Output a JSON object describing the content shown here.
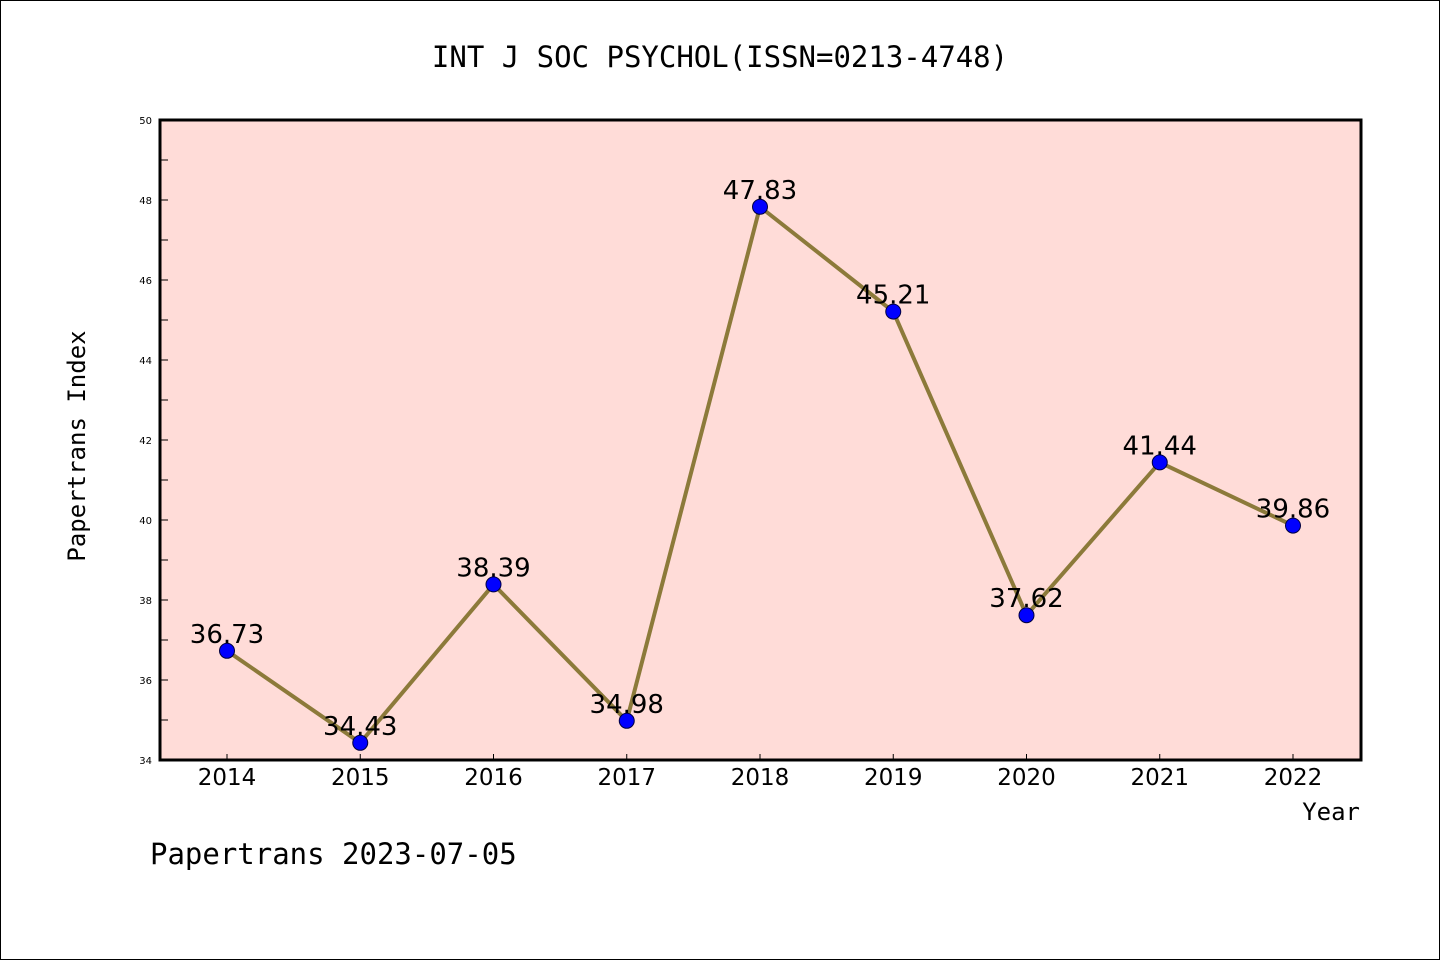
{
  "chart_data": {
    "type": "line",
    "title": "INT J SOC PSYCHOL(ISSN=0213-4748)",
    "xlabel": "Year",
    "ylabel": "Papertrans Index",
    "footer": "Papertrans 2023-07-05",
    "x": [
      "2014",
      "2015",
      "2016",
      "2017",
      "2018",
      "2019",
      "2020",
      "2021",
      "2022"
    ],
    "series": [
      {
        "values": [
          36.73,
          34.43,
          38.39,
          34.98,
          47.83,
          45.21,
          37.62,
          41.44,
          39.86
        ],
        "labels": [
          "36.73",
          "34.43",
          "38.39",
          "34.98",
          "47.83",
          "45.21",
          "37.62",
          "41.44",
          "39.86"
        ],
        "line_color": "#8c7a3a",
        "marker_color": "#0000ff"
      }
    ],
    "ylim": [
      34,
      50
    ],
    "yticks": [
      "34",
      "36",
      "38",
      "40",
      "42",
      "44",
      "46",
      "48",
      "50"
    ],
    "plot_background": "#ffdcd8",
    "grid": false,
    "legend": "none"
  }
}
